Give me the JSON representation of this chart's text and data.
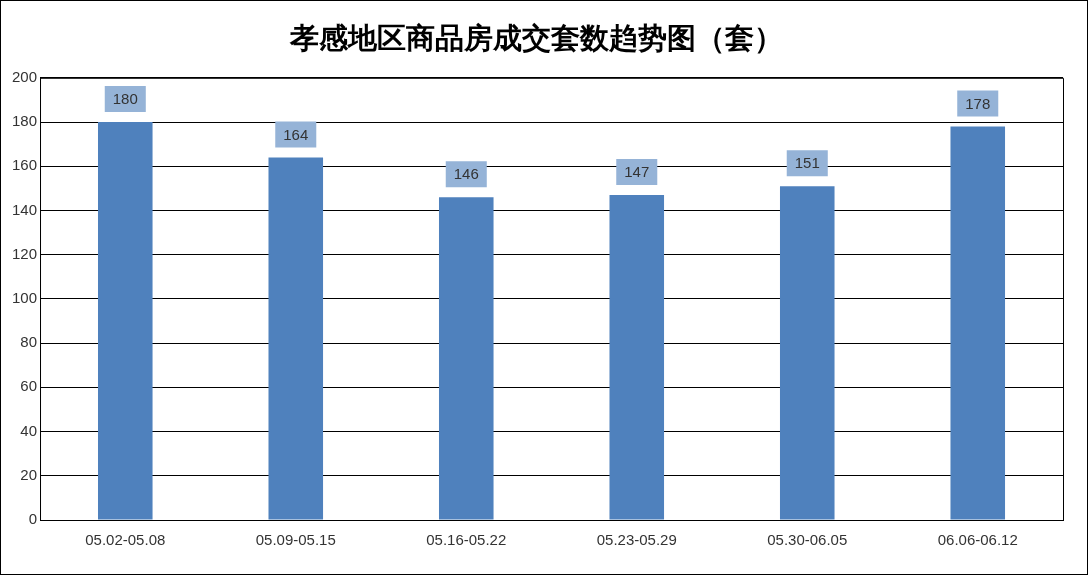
{
  "chart_data": {
    "type": "bar",
    "title": "孝感地区商品房成交套数趋势图（套）",
    "categories": [
      "05.02-05.08",
      "05.09-05.15",
      "05.16-05.22",
      "05.23-05.29",
      "05.30-06.05",
      "06.06-06.12"
    ],
    "values": [
      180,
      164,
      146,
      147,
      151,
      178
    ],
    "color": "#4f81bd",
    "ylim": [
      0,
      200
    ],
    "yticks": [
      0,
      20,
      40,
      60,
      80,
      100,
      120,
      140,
      160,
      180,
      200
    ],
    "grid": "y",
    "legend": false,
    "data_labels": true
  }
}
